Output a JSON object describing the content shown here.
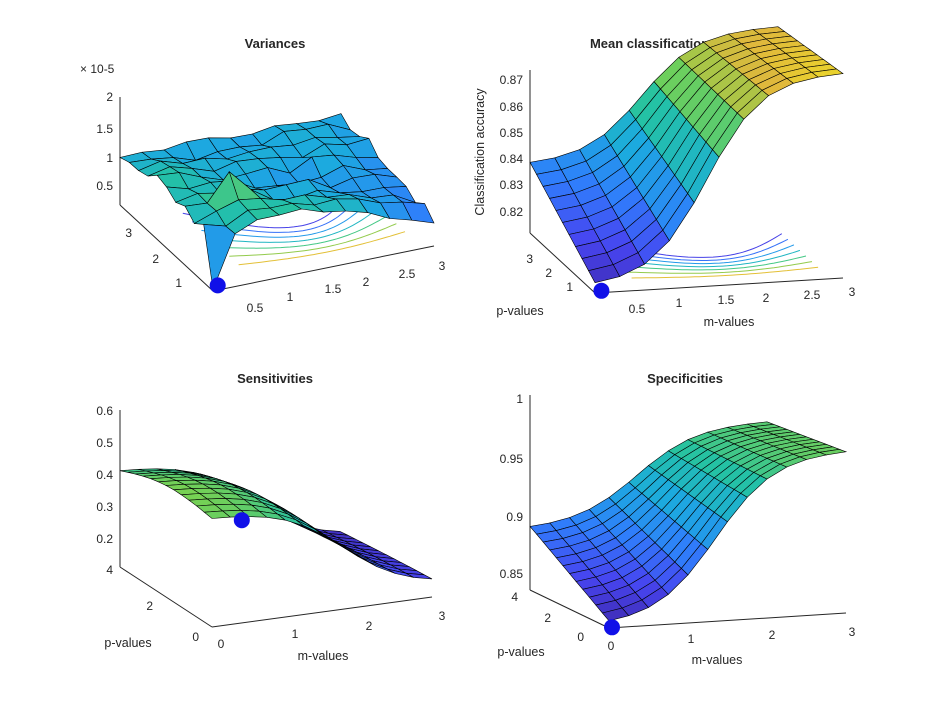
{
  "figure": {
    "colors": {
      "colormap": [
        "#3e26a8",
        "#4745f0",
        "#2f7ffb",
        "#1caadf",
        "#24c2a4",
        "#79d151",
        "#e0b83c",
        "#f9fb15"
      ],
      "marker": "#1010e8",
      "edge": "#000000",
      "background": "#ffffff",
      "text": "#262626"
    }
  },
  "chart_data": [
    {
      "id": "variances",
      "type": "surface",
      "title": "Variances",
      "xlabel": "",
      "ylabel": "",
      "zlabel": "",
      "exponent_label": "× 10-5",
      "xlim": [
        0,
        3
      ],
      "ylim": [
        0,
        3.5
      ],
      "zlim": [
        0,
        2
      ],
      "x_ticks": [
        "0.5",
        "1",
        "1.5",
        "2",
        "2.5",
        "3"
      ],
      "y_ticks": [
        "1",
        "2",
        "3"
      ],
      "z_ticks": [
        "0.5",
        "1",
        "1.5",
        "2"
      ],
      "grid_size": [
        11,
        11
      ],
      "noisy": true,
      "contour": true,
      "marker": {
        "m": 0.1,
        "p": 0.1,
        "z": 0.03
      },
      "z_description": "noisy plateau about 0.7e-5 to 1.2e-5 with a spike to about 1.2e-5 near m 0.6, p 0.8 and low values toward m 3"
    },
    {
      "id": "accuracies",
      "type": "surface",
      "title": "Mean classification accuracies",
      "xlabel": "m-values",
      "ylabel": "p-values",
      "zlabel": "Classification accuracy",
      "xlim": [
        0,
        3
      ],
      "ylim": [
        0,
        3.5
      ],
      "zlim": [
        0.81,
        0.875
      ],
      "x_ticks": [
        "0.5",
        "1",
        "1.5",
        "2",
        "2.5",
        "3"
      ],
      "y_ticks": [
        "1",
        "2",
        "3"
      ],
      "z_ticks": [
        "0.82",
        "0.83",
        "0.84",
        "0.85",
        "0.86",
        "0.87"
      ],
      "grid_size": [
        11,
        11
      ],
      "contour": true,
      "marker": {
        "m": 0.1,
        "p": 0.1,
        "z": 0.81
      },
      "z_at_corners": {
        "m0_p0": 0.81,
        "m0_p3.5": 0.832,
        "m3_p0": 0.871,
        "m3_p3.5": 0.866
      }
    },
    {
      "id": "sensitivities",
      "type": "surface",
      "title": "Sensitivities",
      "xlabel": "m-values",
      "ylabel": "p-values",
      "zlabel": "",
      "xlim": [
        0,
        3
      ],
      "ylim": [
        0,
        4
      ],
      "zlim": [
        0.1,
        0.6
      ],
      "x_ticks": [
        "0",
        "1",
        "2",
        "3"
      ],
      "y_ticks": [
        "0",
        "2",
        "4"
      ],
      "z_ticks": [
        "0.2",
        "0.3",
        "0.4",
        "0.5",
        "0.6"
      ],
      "grid_size": [
        13,
        13
      ],
      "contour": false,
      "marker": {
        "m": 0.5,
        "p": 0.3,
        "z": 0.41
      },
      "z_at_corners": {
        "m0_p0": 0.45,
        "m0_p4": 0.4,
        "m3_p0": 0.13,
        "m3_p4": 0.13
      }
    },
    {
      "id": "specificities",
      "type": "surface",
      "title": "Specificities",
      "xlabel": "m-values",
      "ylabel": "p-values",
      "zlabel": "",
      "xlim": [
        0,
        3
      ],
      "ylim": [
        0,
        4
      ],
      "zlim": [
        0.84,
        1.0
      ],
      "x_ticks": [
        "0",
        "1",
        "2",
        "3"
      ],
      "y_ticks": [
        "0",
        "2",
        "4"
      ],
      "z_ticks": [
        "0.85",
        "0.9",
        "0.95",
        "1"
      ],
      "grid_size": [
        13,
        13
      ],
      "contour": false,
      "marker": {
        "m": 0.05,
        "p": 0.05,
        "z": 0.84
      },
      "z_at_corners": {
        "m0_p0": 0.84,
        "m0_p4": 0.88,
        "m3_p0": 0.955,
        "m3_p4": 0.95
      }
    }
  ]
}
